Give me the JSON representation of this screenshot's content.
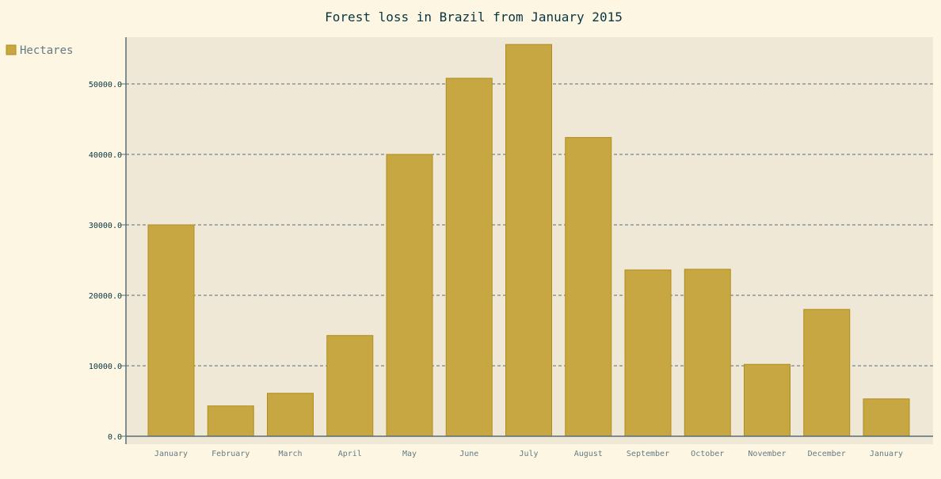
{
  "chart_data": {
    "type": "bar",
    "title": "Forest loss in Brazil from January 2015",
    "xlabel": "",
    "ylabel": "",
    "categories": [
      "January",
      "February",
      "March",
      "April",
      "May",
      "June",
      "July",
      "August",
      "September",
      "October",
      "November",
      "December",
      "January"
    ],
    "series": [
      {
        "name": "Hectares",
        "values": [
          30000,
          4300,
          6100,
          14300,
          40000,
          50800,
          55600,
          42400,
          23600,
          23700,
          10200,
          18000,
          5300
        ]
      }
    ],
    "ylim": [
      0,
      57000
    ],
    "yticks": [
      0,
      10000,
      20000,
      30000,
      40000,
      50000
    ],
    "ytick_labels": [
      "0.0",
      "10000.0",
      "20000.0",
      "30000.0",
      "40000.0",
      "50000.0"
    ],
    "grid": true,
    "legend_position": "top-left",
    "colors": {
      "background": "#fdf6e3",
      "plot_background": "#f0e8d6",
      "bar_fill": "#c7a742",
      "bar_stroke": "#b08c1c",
      "axis": "#586e75"
    }
  }
}
